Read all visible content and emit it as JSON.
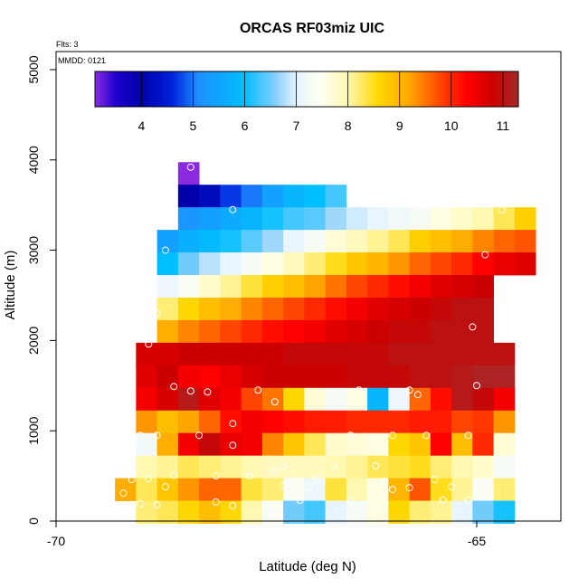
{
  "chart_data": {
    "type": "heatmap",
    "title": "ORCAS RF03miz UIC",
    "subtitle_flts": "Flts: 3",
    "mmdd": "MMDD: 0121",
    "xlabel": "Latitude (deg N)",
    "ylabel": "Altitude (m)",
    "xlim": [
      -70,
      -64
    ],
    "ylim": [
      0,
      5200
    ],
    "x_ticks": [
      -70,
      -65
    ],
    "x_tick_labels": [
      "-70",
      "-65"
    ],
    "y_ticks": [
      0,
      1000,
      2000,
      3000,
      4000,
      5000
    ],
    "y_tick_labels": [
      "0",
      "1000",
      "2000",
      "3000",
      "4000",
      "5000"
    ],
    "grid": false,
    "colorbar": {
      "range": [
        3.1,
        11.3
      ],
      "ticks": [
        4,
        5,
        6,
        7,
        8,
        9,
        10,
        11
      ],
      "tick_labels": [
        "4",
        "5",
        "6",
        "7",
        "8",
        "9",
        "10",
        "11"
      ],
      "stops": [
        [
          3.1,
          "#8a2be2"
        ],
        [
          3.5,
          "#1f00cc"
        ],
        [
          4.0,
          "#0000a8"
        ],
        [
          4.6,
          "#0022dd"
        ],
        [
          5.1,
          "#1e90ff"
        ],
        [
          6.0,
          "#00bfff"
        ],
        [
          6.6,
          "#87cefa"
        ],
        [
          7.0,
          "#e8f5ff"
        ],
        [
          7.5,
          "#fffff0"
        ],
        [
          8.0,
          "#fff8b0"
        ],
        [
          8.6,
          "#ffd700"
        ],
        [
          9.2,
          "#ffa500"
        ],
        [
          9.8,
          "#ff4500"
        ],
        [
          10.3,
          "#ff0000"
        ],
        [
          10.8,
          "#cc0000"
        ],
        [
          11.3,
          "#a52a2a"
        ]
      ]
    },
    "cell": {
      "lon_step": 0.25,
      "alt_step": 100
    },
    "rows": [
      {
        "alt": 3850,
        "lat_start": -68.55,
        "values": [
          3.1
        ]
      },
      {
        "alt": 3600,
        "lat_start": -68.55,
        "values": [
          4.0,
          4.2,
          4.7,
          5.0,
          5.4,
          5.8,
          6.0,
          6.3
        ]
      },
      {
        "alt": 3350,
        "lat_start": -68.55,
        "values": [
          5.2,
          5.4,
          5.6,
          5.8,
          6.1,
          6.3,
          6.4,
          6.7,
          6.9,
          7.0,
          7.2,
          7.3,
          7.6,
          7.8,
          8.0,
          8.3,
          8.7
        ]
      },
      {
        "alt": 3100,
        "lat_start": -68.8,
        "values": [
          5.4,
          5.7,
          5.9,
          6.1,
          6.4,
          6.7,
          7.0,
          7.3,
          7.7,
          7.9,
          8.1,
          8.3,
          8.7,
          8.9,
          9.1,
          9.4,
          9.6,
          9.7
        ]
      },
      {
        "alt": 2850,
        "lat_start": -68.8,
        "values": [
          6.0,
          6.5,
          6.8,
          7.0,
          7.3,
          7.6,
          7.9,
          8.2,
          8.5,
          8.8,
          9.0,
          9.3,
          9.6,
          9.8,
          10.0,
          10.3,
          10.5,
          10.6
        ]
      },
      {
        "alt": 2600,
        "lat_start": -68.8,
        "values": [
          7.1,
          7.4,
          7.8,
          8.1,
          8.4,
          8.7,
          8.9,
          9.2,
          9.5,
          9.8,
          10.0,
          10.2,
          10.4,
          10.6,
          10.7,
          10.8
        ]
      },
      {
        "alt": 2350,
        "lat_start": -68.8,
        "values": [
          8.2,
          8.6,
          8.9,
          9.1,
          9.4,
          9.6,
          9.8,
          10.0,
          10.2,
          10.4,
          10.6,
          10.7,
          10.8,
          10.9,
          11.0,
          11.0
        ]
      },
      {
        "alt": 2100,
        "lat_start": -68.8,
        "values": [
          9.1,
          9.4,
          9.6,
          9.8,
          10.0,
          10.2,
          10.3,
          10.4,
          10.6,
          10.7,
          10.8,
          10.9,
          10.9,
          11.0,
          11.0,
          11.0
        ]
      },
      {
        "alt": 1850,
        "lat_start": -69.05,
        "values": [
          10.7,
          10.7,
          10.8,
          10.8,
          10.8,
          10.8,
          10.8,
          10.9,
          10.9,
          10.9,
          10.9,
          10.9,
          11.0,
          11.0,
          11.0,
          11.0,
          11.0,
          11.0
        ]
      },
      {
        "alt": 1600,
        "lat_start": -69.05,
        "values": [
          10.6,
          10.8,
          10.4,
          10.3,
          10.5,
          10.7,
          10.8,
          10.8,
          10.8,
          10.8,
          10.9,
          10.9,
          10.9,
          11.0,
          11.0,
          11.1,
          11.2,
          11.2
        ]
      },
      {
        "alt": 1350,
        "lat_start": -69.05,
        "values": [
          10.4,
          10.7,
          11.1,
          10.6,
          10.4,
          9.8,
          9.5,
          8.6,
          7.7,
          7.3,
          7.6,
          5.8,
          7.1,
          9.6,
          10.2,
          11.1,
          10.9,
          10.4
        ]
      },
      {
        "alt": 1100,
        "lat_start": -69.05,
        "values": [
          9.3,
          8.9,
          9.2,
          9.6,
          10.2,
          10.4,
          10.3,
          10.2,
          10.1,
          10.1,
          10.0,
          10.0,
          10.0,
          10.1,
          10.1,
          9.8,
          9.9,
          9.3
        ]
      },
      {
        "alt": 850,
        "lat_start": -69.05,
        "values": [
          7.2,
          9.1,
          10.4,
          10.9,
          10.5,
          10.4,
          9.4,
          8.8,
          8.3,
          7.8,
          7.7,
          7.6,
          8.6,
          8.8,
          10.3,
          8.9,
          10.0,
          7.7
        ]
      },
      {
        "alt": 600,
        "lat_start": -69.05,
        "values": [
          8.0,
          8.1,
          8.3,
          8.2,
          8.1,
          8.0,
          7.9,
          7.9,
          7.9,
          8.0,
          8.1,
          8.3,
          8.4,
          8.5,
          8.2,
          8.0,
          7.8,
          7.3
        ]
      },
      {
        "alt": 350,
        "lat_start": -69.3,
        "values": [
          9.1,
          8.3,
          8.8,
          9.3,
          9.6,
          9.6,
          8.4,
          8.2,
          7.4,
          7.1,
          8.4,
          8.0,
          7.6,
          9.0,
          9.7,
          8.5,
          8.1,
          7.4,
          8.2
        ]
      },
      {
        "alt": 100,
        "lat_start": -69.05,
        "values": [
          8.2,
          8.3,
          8.6,
          8.9,
          8.6,
          8.0,
          7.4,
          6.5,
          6.3,
          7.0,
          7.3,
          7.6,
          8.6,
          8.2,
          8.1,
          7.0,
          6.5,
          6.1
        ]
      }
    ],
    "sample_points": [
      [
        -68.4,
        3920
      ],
      [
        -67.9,
        3450
      ],
      [
        -64.7,
        3450
      ],
      [
        -68.7,
        3000
      ],
      [
        -64.9,
        2950
      ],
      [
        -68.8,
        2300
      ],
      [
        -65.05,
        2150
      ],
      [
        -68.9,
        1960
      ],
      [
        -65.0,
        1500
      ],
      [
        -68.6,
        1490
      ],
      [
        -68.4,
        1440
      ],
      [
        -68.2,
        1430
      ],
      [
        -67.6,
        1450
      ],
      [
        -67.4,
        1320
      ],
      [
        -66.4,
        1450
      ],
      [
        -65.8,
        1450
      ],
      [
        -65.7,
        1400
      ],
      [
        -67.9,
        1080
      ],
      [
        -69.0,
        950
      ],
      [
        -68.8,
        950
      ],
      [
        -68.3,
        950
      ],
      [
        -67.9,
        840
      ],
      [
        -66.5,
        950
      ],
      [
        -66.0,
        950
      ],
      [
        -65.6,
        950
      ],
      [
        -65.1,
        950
      ],
      [
        -67.3,
        600
      ],
      [
        -66.7,
        610
      ],
      [
        -66.2,
        610
      ],
      [
        -69.1,
        460
      ],
      [
        -68.9,
        470
      ],
      [
        -68.6,
        510
      ],
      [
        -68.1,
        500
      ],
      [
        -67.7,
        500
      ],
      [
        -67.4,
        560
      ],
      [
        -67.2,
        450
      ],
      [
        -66.9,
        470
      ],
      [
        -66.1,
        440
      ],
      [
        -65.5,
        460
      ],
      [
        -65.0,
        380
      ],
      [
        -69.2,
        310
      ],
      [
        -68.7,
        380
      ],
      [
        -67.3,
        390
      ],
      [
        -67.0,
        370
      ],
      [
        -66.0,
        350
      ],
      [
        -65.8,
        370
      ],
      [
        -65.3,
        380
      ],
      [
        -69.0,
        190
      ],
      [
        -68.8,
        180
      ],
      [
        -68.1,
        210
      ],
      [
        -67.9,
        170
      ],
      [
        -67.1,
        230
      ],
      [
        -66.5,
        230
      ],
      [
        -65.4,
        230
      ],
      [
        -65.1,
        230
      ]
    ]
  }
}
